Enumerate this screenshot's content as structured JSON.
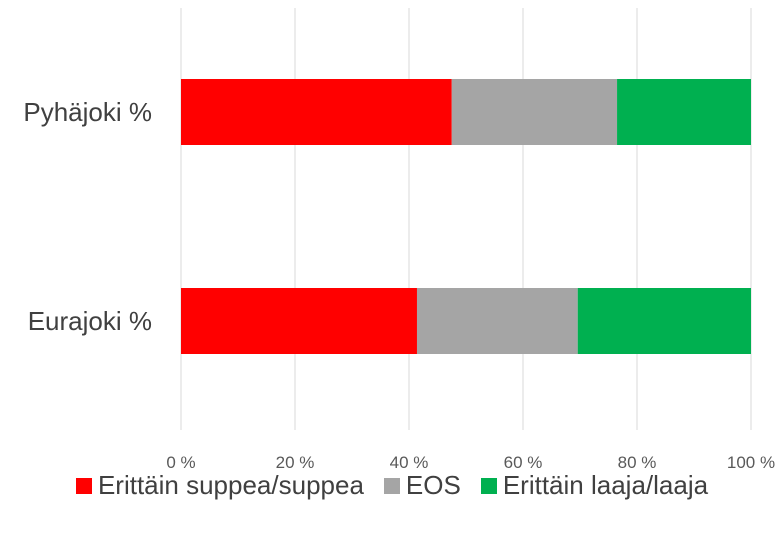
{
  "chart_data": {
    "type": "bar",
    "orientation": "horizontal",
    "stacked": "percent",
    "categories": [
      "Pyhäjoki %",
      "Eurajoki %"
    ],
    "series": [
      {
        "name": "Erittäin suppea/suppea",
        "color": "#ff0000",
        "values": [
          47.5,
          41.4
        ]
      },
      {
        "name": "EOS",
        "color": "#a5a5a5",
        "values": [
          29.0,
          28.2
        ]
      },
      {
        "name": "Erittäin laaja/laaja",
        "color": "#00b050",
        "values": [
          23.5,
          30.4
        ]
      }
    ],
    "xlim": [
      0,
      100
    ],
    "xticks": [
      "0 %",
      "20 %",
      "40 %",
      "60 %",
      "80 %",
      "100 %"
    ],
    "grid": "vertical",
    "legend_position": "bottom"
  }
}
